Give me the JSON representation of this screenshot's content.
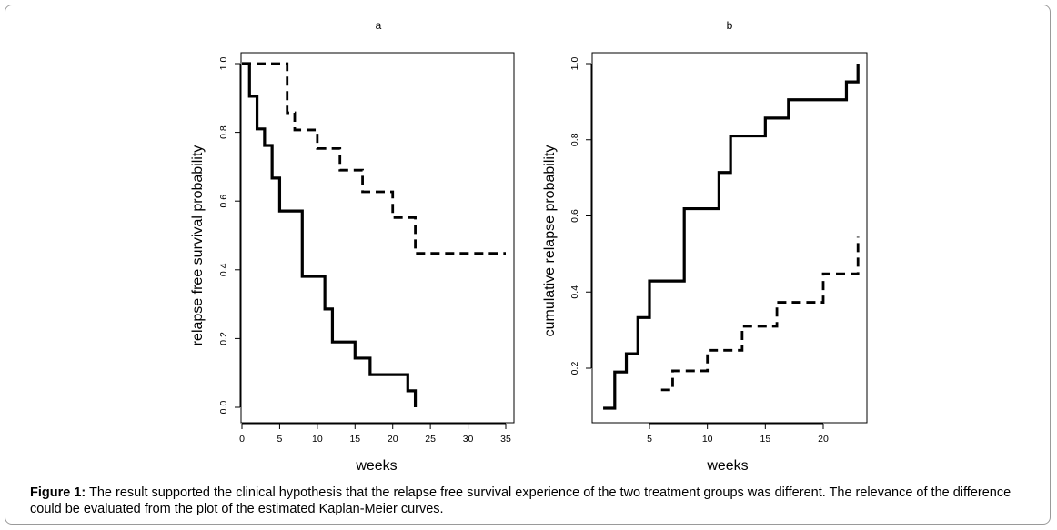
{
  "chart_data": [
    {
      "type": "line",
      "panel_label": "a",
      "xlabel": "weeks",
      "ylabel": "relapse free survival probability",
      "xlim": [
        0,
        35
      ],
      "ylim": [
        0,
        1
      ],
      "x_ticks": [
        "0",
        "5",
        "10",
        "15",
        "20",
        "25",
        "30",
        "35"
      ],
      "y_ticks": [
        "0.0",
        "0.2",
        "0.4",
        "0.6",
        "0.8",
        "1.0"
      ],
      "series": [
        {
          "style": "solid",
          "x": [
            0,
            1,
            2,
            3,
            4,
            5,
            8,
            11,
            12,
            15,
            17,
            22,
            23,
            23
          ],
          "y": [
            1.0,
            0.905,
            0.81,
            0.762,
            0.667,
            0.571,
            0.381,
            0.286,
            0.19,
            0.143,
            0.095,
            0.048,
            0.048,
            0.0
          ]
        },
        {
          "style": "dashed",
          "x": [
            0,
            6,
            7,
            10,
            13,
            16,
            20,
            22,
            23,
            35
          ],
          "y": [
            1.0,
            0.857,
            0.807,
            0.753,
            0.69,
            0.627,
            0.552,
            0.552,
            0.448,
            0.448
          ]
        }
      ]
    },
    {
      "type": "line",
      "panel_label": "b",
      "xlabel": "weeks",
      "ylabel": "cumulative relapse probability",
      "xlim": [
        0,
        24
      ],
      "ylim": [
        0.05,
        1.0
      ],
      "x_ticks": [
        "5",
        "10",
        "15",
        "20"
      ],
      "y_ticks": [
        "0.2",
        "0.4",
        "0.6",
        "0.8",
        "1.0"
      ],
      "series": [
        {
          "style": "solid",
          "x": [
            1,
            2,
            3,
            4,
            5,
            8,
            11,
            12,
            15,
            17,
            22,
            23,
            23
          ],
          "y": [
            0.095,
            0.19,
            0.238,
            0.333,
            0.429,
            0.619,
            0.714,
            0.81,
            0.857,
            0.905,
            0.952,
            0.952,
            1.0
          ]
        },
        {
          "style": "dashed",
          "x": [
            6,
            7,
            10,
            11,
            13,
            16,
            20,
            23,
            23
          ],
          "y": [
            0.143,
            0.193,
            0.247,
            0.247,
            0.31,
            0.373,
            0.448,
            0.448,
            0.545
          ]
        }
      ]
    }
  ],
  "caption": {
    "label": "Figure 1:",
    "text": " The result supported the clinical hypothesis that the relapse free survival experience of the two treatment groups was different. The relevance of the difference could be evaluated from the plot of the estimated Kaplan-Meier curves."
  }
}
